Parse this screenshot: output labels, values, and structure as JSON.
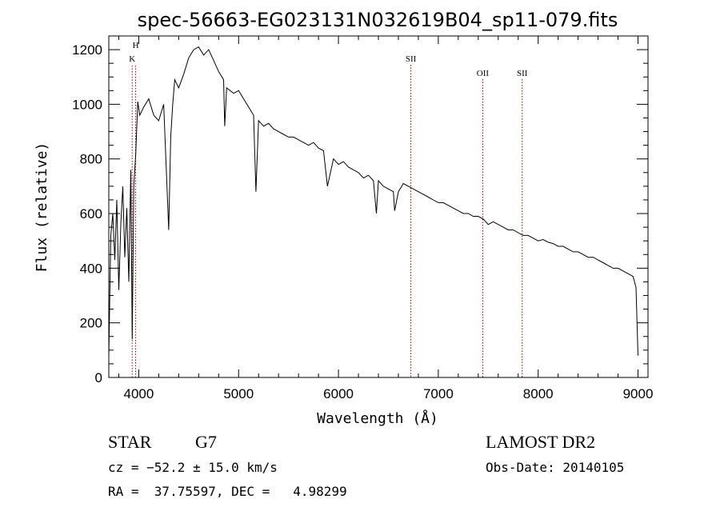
{
  "chart_data": {
    "type": "line",
    "title": "spec-56663-EG023131N032619B04_sp11-079.fits",
    "xlabel": "Wavelength (Å)",
    "ylabel": "Flux (relative)",
    "xlim": [
      3700,
      9100
    ],
    "ylim": [
      0,
      1250
    ],
    "xticks": [
      4000,
      5000,
      6000,
      7000,
      8000,
      9000
    ],
    "yticks": [
      0,
      200,
      400,
      600,
      800,
      1000,
      1200
    ],
    "grid": false,
    "series": [
      {
        "x": [
          3700,
          3720,
          3740,
          3760,
          3780,
          3800,
          3820,
          3840,
          3860,
          3880,
          3900,
          3920,
          3935,
          3950,
          3970,
          3990,
          4010,
          4050,
          4100,
          4150,
          4200,
          4250,
          4300,
          4320,
          4340,
          4360,
          4400,
          4450,
          4500,
          4550,
          4600,
          4650,
          4700,
          4750,
          4800,
          4850,
          4861,
          4880,
          4950,
          5000,
          5050,
          5100,
          5150,
          5173,
          5200,
          5250,
          5300,
          5350,
          5400,
          5450,
          5500,
          5550,
          5600,
          5650,
          5700,
          5750,
          5800,
          5850,
          5890,
          5950,
          6000,
          6050,
          6100,
          6150,
          6200,
          6250,
          6300,
          6350,
          6380,
          6400,
          6450,
          6500,
          6550,
          6563,
          6600,
          6650,
          6700,
          6750,
          6800,
          6850,
          6900,
          6950,
          7000,
          7050,
          7100,
          7150,
          7200,
          7250,
          7300,
          7350,
          7400,
          7450,
          7500,
          7550,
          7600,
          7650,
          7700,
          7750,
          7800,
          7850,
          7900,
          7950,
          8000,
          8050,
          8100,
          8150,
          8200,
          8250,
          8300,
          8350,
          8400,
          8450,
          8500,
          8550,
          8600,
          8650,
          8700,
          8750,
          8800,
          8850,
          8900,
          8950,
          8980,
          9000
        ],
        "values": [
          80,
          520,
          600,
          430,
          650,
          320,
          560,
          700,
          440,
          620,
          350,
          760,
          140,
          700,
          820,
          1010,
          960,
          990,
          1020,
          960,
          940,
          1000,
          540,
          880,
          1000,
          1090,
          1060,
          1110,
          1170,
          1200,
          1210,
          1180,
          1200,
          1160,
          1120,
          1090,
          920,
          1060,
          1040,
          1050,
          1020,
          990,
          960,
          680,
          940,
          920,
          930,
          910,
          900,
          890,
          880,
          880,
          870,
          860,
          850,
          860,
          840,
          830,
          700,
          800,
          780,
          790,
          770,
          760,
          750,
          730,
          740,
          720,
          600,
          720,
          700,
          690,
          680,
          610,
          680,
          710,
          700,
          690,
          680,
          670,
          660,
          650,
          640,
          640,
          630,
          620,
          610,
          600,
          600,
          590,
          590,
          580,
          560,
          570,
          560,
          550,
          540,
          540,
          530,
          520,
          520,
          510,
          500,
          505,
          495,
          490,
          480,
          480,
          470,
          460,
          460,
          450,
          440,
          440,
          430,
          420,
          410,
          400,
          400,
          390,
          380,
          370,
          330,
          80
        ]
      }
    ],
    "lines": [
      {
        "label": "H",
        "x": 3969
      },
      {
        "label": "K",
        "x": 3934
      },
      {
        "label": "SII",
        "x": 6725
      },
      {
        "label": "OII",
        "x": 7445
      },
      {
        "label": "SII",
        "x": 7840
      }
    ]
  },
  "info": {
    "object_type": "STAR",
    "subclass": "G7",
    "survey": "LAMOST DR2",
    "cz_text": "cz = −52.2 ± 15.0 km/s",
    "obs_date": "Obs-Date: 20140105",
    "radec_text": "RA =  37.75597, DEC =   4.98299"
  },
  "colors": {
    "spectrum": "#000000",
    "line_marker": "#a00000"
  }
}
